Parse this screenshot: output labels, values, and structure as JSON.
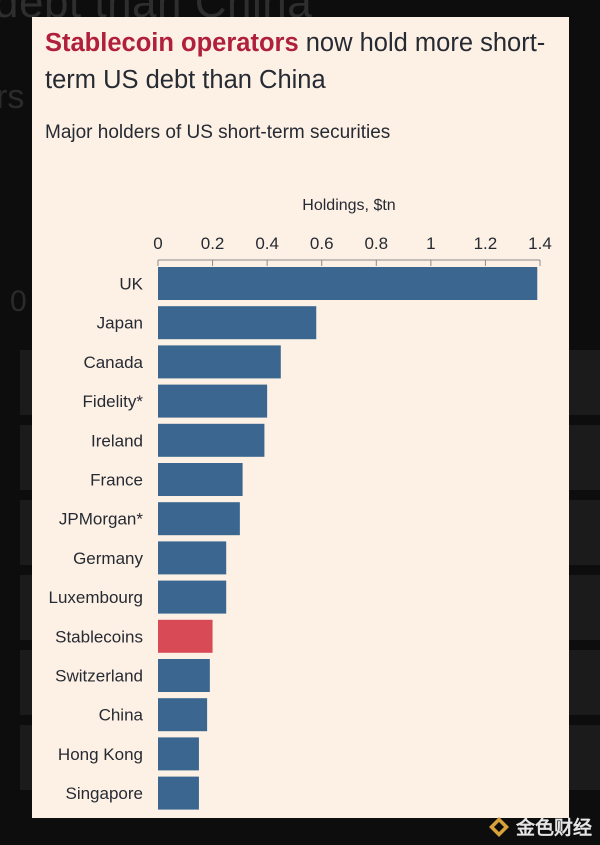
{
  "chart_data": {
    "type": "bar",
    "orientation": "horizontal",
    "title_highlight": "Stablecoin operators",
    "title_rest": " now hold more short-term US debt than China",
    "subtitle": "Major holders of US short-term securities",
    "xlabel": "Holdings, $tn",
    "xlim": [
      0,
      1.4
    ],
    "ticks": [
      {
        "value": 0,
        "label": "0"
      },
      {
        "value": 0.2,
        "label": "0.2"
      },
      {
        "value": 0.4,
        "label": "0.4"
      },
      {
        "value": 0.6,
        "label": "0.6"
      },
      {
        "value": 0.8,
        "label": "0.8"
      },
      {
        "value": 1,
        "label": "1"
      },
      {
        "value": 1.2,
        "label": "1.2"
      },
      {
        "value": 1.4,
        "label": "1.4"
      }
    ],
    "categories": [
      "UK",
      "Japan",
      "Canada",
      "Fidelity*",
      "Ireland",
      "France",
      "JPMorgan*",
      "Germany",
      "Luxembourg",
      "Stablecoins",
      "Switzerland",
      "China",
      "Hong Kong",
      "Singapore"
    ],
    "values": [
      1.39,
      0.58,
      0.45,
      0.4,
      0.39,
      0.31,
      0.3,
      0.25,
      0.25,
      0.2,
      0.19,
      0.18,
      0.15,
      0.15
    ],
    "highlight_category": "Stablecoins",
    "colors": {
      "bar": "#3a6690",
      "highlight": "#d94a57",
      "text": "#262a33",
      "grid": "#8a8a8a"
    }
  },
  "background": {
    "ghost_title": "debt than China",
    "ghost_letters": "rs",
    "ghost_digit": "0"
  },
  "watermark": {
    "text": "金色财经",
    "icon": "jinse-logo-icon"
  }
}
